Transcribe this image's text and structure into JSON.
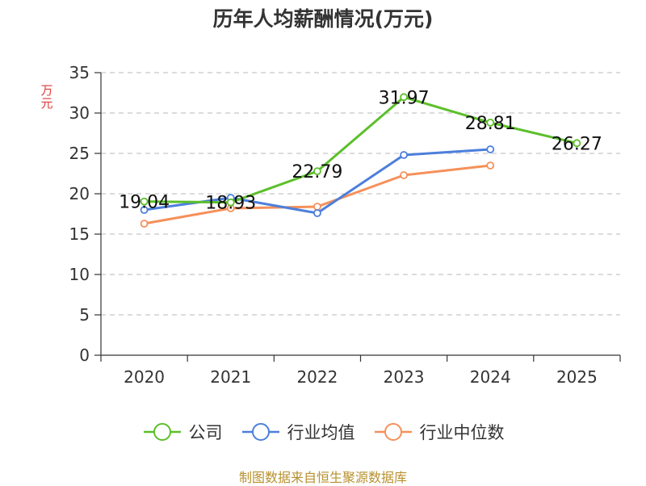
{
  "chart_data": {
    "type": "line",
    "title": "历年人均薪酬情况(万元)",
    "ylabel": "万元",
    "xlabel": "",
    "categories": [
      "2020",
      "2021",
      "2022",
      "2023",
      "2024",
      "2025"
    ],
    "ylim": [
      0,
      35
    ],
    "yticks": [
      0,
      5,
      10,
      15,
      20,
      25,
      30,
      35
    ],
    "grid": true,
    "legend_position": "bottom",
    "series": [
      {
        "name": "公司",
        "color": "#5cbf2a",
        "values": [
          19.04,
          18.93,
          22.79,
          31.97,
          28.81,
          26.27
        ],
        "labels": [
          "19.04",
          "18.93",
          "22.79",
          "31.97",
          "28.81",
          "26.27"
        ]
      },
      {
        "name": "行业均值",
        "color": "#4c7fdc",
        "values": [
          18.0,
          19.5,
          17.6,
          24.8,
          25.5,
          null
        ]
      },
      {
        "name": "行业中位数",
        "color": "#f5905a",
        "values": [
          16.3,
          18.2,
          18.4,
          22.3,
          23.5,
          null
        ]
      }
    ]
  },
  "source": "制图数据来自恒生聚源数据库"
}
